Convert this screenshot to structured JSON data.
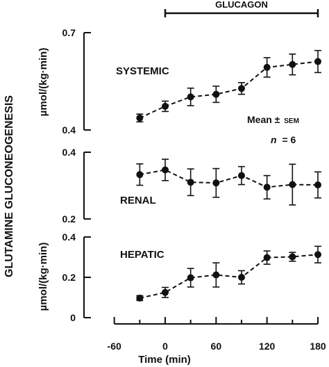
{
  "figure": {
    "ylabel_main": "GLUTAMINE GLUCONEOGENESIS",
    "xlabel": "Time (min)",
    "bar_label": "GLUCAGON",
    "glucagon_start": 0,
    "glucagon_end": 180,
    "stats_label_prefix": "Mean ±",
    "stats_label_sem": "SEM",
    "n_label": "n",
    "n_value": "= 6",
    "x_ticks": [
      -60,
      0,
      60,
      120,
      180
    ],
    "x_tick_labels": [
      "-60",
      "0",
      "60",
      "120",
      "180"
    ],
    "xlim": [
      -60,
      180
    ],
    "ink_color": "#111111"
  },
  "chart_data": [
    {
      "type": "line",
      "panel": "SYSTEMIC",
      "label": "SYSTEMIC",
      "ylabel": "µmol/(kg·min)",
      "ylim": [
        0.4,
        0.7
      ],
      "yticks": [
        0.4,
        0.7
      ],
      "ytick_labels": [
        "0.4",
        "0.7"
      ],
      "x": [
        -30,
        0,
        30,
        60,
        90,
        120,
        150,
        180
      ],
      "y": [
        0.437,
        0.473,
        0.502,
        0.51,
        0.528,
        0.593,
        0.602,
        0.611
      ],
      "err": [
        0.012,
        0.016,
        0.027,
        0.025,
        0.018,
        0.03,
        0.032,
        0.034
      ]
    },
    {
      "type": "line",
      "panel": "RENAL",
      "label": "RENAL",
      "ylim": [
        0.2,
        0.4
      ],
      "yticks": [
        0.2,
        0.4
      ],
      "ytick_labels": [
        "0.2",
        "0.4"
      ],
      "x": [
        -30,
        0,
        30,
        60,
        90,
        120,
        150,
        180
      ],
      "y": [
        0.333,
        0.347,
        0.31,
        0.308,
        0.33,
        0.295,
        0.303,
        0.302
      ],
      "err": [
        0.032,
        0.032,
        0.04,
        0.043,
        0.027,
        0.035,
        0.061,
        0.039
      ]
    },
    {
      "type": "line",
      "panel": "HEPATIC",
      "label": "HEPATIC",
      "ylabel": "µmol/(kg·min)",
      "ylim": [
        0,
        0.4
      ],
      "yticks": [
        0,
        0.2,
        0.4
      ],
      "ytick_labels": [
        "0",
        "0.2",
        "0.4"
      ],
      "x": [
        -30,
        0,
        30,
        60,
        90,
        120,
        150,
        180
      ],
      "y": [
        0.097,
        0.125,
        0.198,
        0.212,
        0.2,
        0.298,
        0.302,
        0.313
      ],
      "err": [
        0.012,
        0.025,
        0.046,
        0.06,
        0.033,
        0.033,
        0.022,
        0.041
      ]
    }
  ]
}
